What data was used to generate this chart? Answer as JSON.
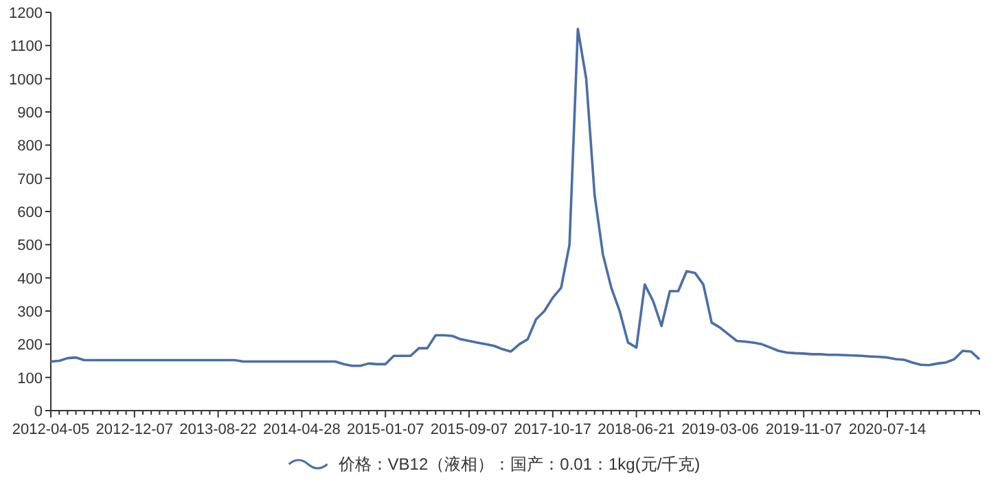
{
  "chart_data": {
    "type": "line",
    "categories": [
      "2012-04-05",
      null,
      null,
      null,
      null,
      null,
      null,
      null,
      null,
      null,
      "2012-12-07",
      null,
      null,
      null,
      null,
      null,
      null,
      null,
      null,
      null,
      "2013-08-22",
      null,
      null,
      null,
      null,
      null,
      null,
      null,
      null,
      null,
      "2014-04-28",
      null,
      null,
      null,
      null,
      null,
      null,
      null,
      null,
      null,
      "2015-01-07",
      null,
      null,
      null,
      null,
      null,
      null,
      null,
      null,
      null,
      "2015-09-07",
      null,
      null,
      null,
      null,
      null,
      null,
      null,
      null,
      null,
      "2017-10-17",
      null,
      null,
      null,
      null,
      null,
      null,
      null,
      null,
      null,
      "2018-06-21",
      null,
      null,
      null,
      null,
      null,
      null,
      null,
      null,
      null,
      "2019-03-06",
      null,
      null,
      null,
      null,
      null,
      null,
      null,
      null,
      null,
      "2019-11-07",
      null,
      null,
      null,
      null,
      null,
      null,
      null,
      null,
      null,
      "2020-07-14",
      null,
      null,
      null,
      null,
      null,
      null,
      null,
      null,
      null,
      null,
      null
    ],
    "series": [
      {
        "name": "价格：VB12（液相）：国产：0.01：1kg(元/千克)",
        "color": "#4a6fa5",
        "values": [
          148,
          150,
          158,
          160,
          152,
          152,
          152,
          152,
          152,
          152,
          152,
          152,
          152,
          152,
          152,
          152,
          152,
          152,
          152,
          152,
          152,
          152,
          152,
          148,
          148,
          148,
          148,
          148,
          148,
          148,
          148,
          148,
          148,
          148,
          148,
          140,
          135,
          135,
          142,
          140,
          140,
          165,
          165,
          165,
          188,
          188,
          227,
          227,
          225,
          215,
          210,
          205,
          200,
          195,
          185,
          178,
          200,
          215,
          275,
          300,
          340,
          370,
          500,
          1150,
          1000,
          650,
          470,
          370,
          300,
          205,
          190,
          380,
          330,
          255,
          360,
          360,
          420,
          415,
          380,
          265,
          250,
          230,
          210,
          208,
          205,
          200,
          190,
          180,
          175,
          173,
          172,
          170,
          170,
          168,
          168,
          167,
          166,
          165,
          163,
          162,
          160,
          155,
          153,
          145,
          138,
          137,
          142,
          145,
          155,
          180,
          178,
          155
        ]
      }
    ],
    "ylim": [
      0,
      1200
    ],
    "yticks": [
      0,
      100,
      200,
      300,
      400,
      500,
      600,
      700,
      800,
      900,
      1000,
      1100,
      1200
    ],
    "grid": false,
    "legend": "bottom",
    "marker": "none",
    "line_style": "solid"
  }
}
